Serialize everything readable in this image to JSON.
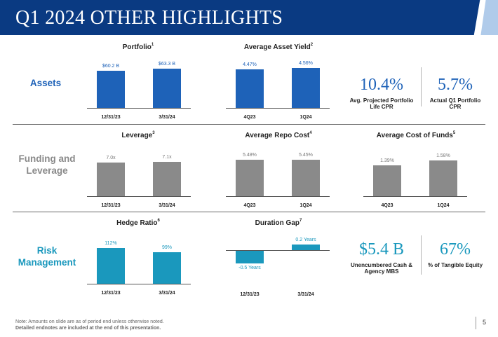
{
  "header": {
    "title": "Q1 2024 OTHER HIGHLIGHTS"
  },
  "sections": {
    "assets": "Assets",
    "funding": "Funding and Leverage",
    "risk": "Risk Management"
  },
  "colors": {
    "header": "#0a3a82",
    "assets_bar": "#1e62b8",
    "funding_bar": "#8a8a8a",
    "risk_bar": "#1a98bd"
  },
  "kpis": {
    "cpr_projected": {
      "value": "10.4%",
      "label": "Avg. Projected Portfolio Life CPR"
    },
    "cpr_actual": {
      "value": "5.7%",
      "label": "Actual Q1 Portfolio CPR"
    },
    "unencumbered": {
      "value": "$5.4 B",
      "label": "Unencumbered Cash & Agency MBS"
    },
    "tangible": {
      "value": "67%",
      "label": "% of Tangible Equity"
    }
  },
  "footnote": {
    "line1": "Note: Amounts on slide are as of period end unless otherwise noted.",
    "line2": "Detailed endnotes are included at the end of this presentation."
  },
  "page_number": "5",
  "chart_data": [
    {
      "type": "bar",
      "id": "portfolio",
      "title": "Portfolio",
      "footnote": "1",
      "categories": [
        "12/31/23",
        "3/31/24"
      ],
      "values": [
        60.2,
        63.3
      ],
      "labels": [
        "$60.2 B",
        "$63.3 B"
      ],
      "ylim": [
        0,
        70
      ]
    },
    {
      "type": "bar",
      "id": "asset_yield",
      "title": "Average Asset Yield",
      "footnote": "2",
      "categories": [
        "4Q23",
        "1Q24"
      ],
      "values": [
        4.47,
        4.56
      ],
      "labels": [
        "4.47%",
        "4.56%"
      ],
      "ylim": [
        0,
        5.0
      ]
    },
    {
      "type": "bar",
      "id": "leverage",
      "title": "Leverage",
      "footnote": "3",
      "categories": [
        "12/31/23",
        "3/31/24"
      ],
      "values": [
        7.0,
        7.1
      ],
      "labels": [
        "7.0x",
        "7.1x"
      ],
      "ylim": [
        0,
        7.8
      ]
    },
    {
      "type": "bar",
      "id": "repo_cost",
      "title": "Average Repo Cost",
      "footnote": "4",
      "categories": [
        "4Q23",
        "1Q24"
      ],
      "values": [
        5.48,
        5.45
      ],
      "labels": [
        "5.48%",
        "5.45%"
      ],
      "ylim": [
        0,
        5.9
      ]
    },
    {
      "type": "bar",
      "id": "cost_funds",
      "title": "Average Cost of Funds",
      "footnote": "5",
      "categories": [
        "4Q23",
        "1Q24"
      ],
      "values": [
        1.39,
        1.58
      ],
      "labels": [
        "1.39%",
        "1.58%"
      ],
      "ylim": [
        0,
        1.75
      ]
    },
    {
      "type": "bar",
      "id": "hedge_ratio",
      "title": "Hedge Ratio",
      "footnote": "6",
      "categories": [
        "12/31/23",
        "3/31/24"
      ],
      "values": [
        112,
        99
      ],
      "labels": [
        "112%",
        "99%"
      ],
      "ylim": [
        0,
        118
      ]
    },
    {
      "type": "bar",
      "id": "duration_gap",
      "title": "Duration Gap",
      "footnote": "7",
      "categories": [
        "12/31/23",
        "3/31/24"
      ],
      "values": [
        -0.5,
        0.2
      ],
      "labels": [
        "-0.5 Years",
        "0.2 Years"
      ],
      "ylim": [
        -0.5,
        0.2
      ]
    }
  ]
}
